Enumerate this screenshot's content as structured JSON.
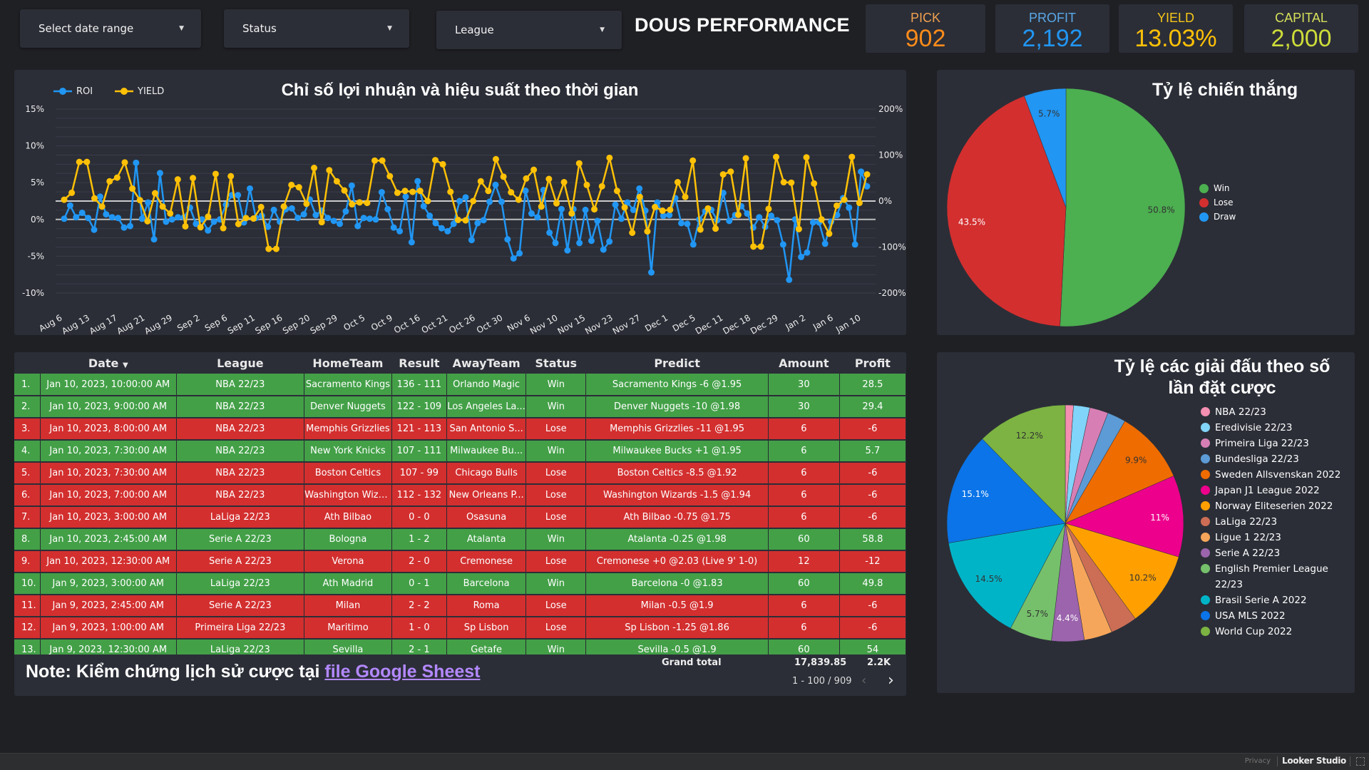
{
  "filters": {
    "date_range": "Select date range",
    "status": "Status",
    "league": "League"
  },
  "header": {
    "title": "DOUS PERFORMANCE"
  },
  "kpis": [
    {
      "label": "PICK",
      "value": "902",
      "label_color": "#f0a050",
      "value_color": "#ff8c1a"
    },
    {
      "label": "PROFIT",
      "value": "2,192",
      "label_color": "#5aa8e8",
      "value_color": "#2196f3"
    },
    {
      "label": "YIELD",
      "value": "13.03%",
      "label_color": "#f5c518",
      "value_color": "#ffc107"
    },
    {
      "label": "CAPITAL",
      "value": "2,000",
      "label_color": "#d6e05a",
      "value_color": "#cddc39"
    }
  ],
  "colors": {
    "win": "#43a047",
    "lose": "#d32f2f",
    "roi_line": "#2196f3",
    "yield_line": "#ffc107",
    "panel_bg": "#2b2e37",
    "page_bg": "#1f2024",
    "link": "#b388ff"
  },
  "chart_data": [
    {
      "type": "line",
      "title": "Chỉ số lợi nhuận và hiệu suất theo thời gian",
      "legend": [
        "ROI",
        "YIELD"
      ],
      "legend_position": "top-left",
      "grid": true,
      "left_axis": {
        "series": "ROI",
        "ylim": [
          -10,
          15
        ],
        "ticks": [
          "-10%",
          "-5%",
          "0%",
          "5%",
          "10%",
          "15%"
        ]
      },
      "right_axis": {
        "series": "YIELD",
        "ylim": [
          -200,
          200
        ],
        "ticks": [
          "-200%",
          "-100%",
          "0%",
          "100%",
          "200%"
        ]
      },
      "x_tick_labels": [
        "Aug 6",
        "Aug 13",
        "Aug 17",
        "Aug 21",
        "Aug 29",
        "Sep 2",
        "Sep 6",
        "Sep 11",
        "Sep 16",
        "Sep 20",
        "Sep 29",
        "Oct 5",
        "Oct 9",
        "Oct 16",
        "Oct 21",
        "Oct 26",
        "Oct 30",
        "Nov 6",
        "Nov 10",
        "Nov 15",
        "Nov 23",
        "Nov 27",
        "Dec 1",
        "Dec 5",
        "Dec 11",
        "Dec 18",
        "Dec 29",
        "Jan 2",
        "Jan 6",
        "Jan 10"
      ],
      "series": [
        {
          "name": "ROI",
          "axis": "left",
          "color": "#2196f3",
          "values": [
            0.1,
            1.9,
            0.3,
            0.9,
            0.2,
            -1.4,
            3.1,
            0.7,
            0.3,
            0.2,
            -1.1,
            -0.9,
            7.7,
            0.1,
            2.3,
            -2.7,
            6.3,
            -0.3,
            0.0,
            0.3,
            0.3,
            1.6,
            -0.6,
            0.0,
            -1.5,
            -0.3,
            0.0,
            2.0,
            3.3,
            3.3,
            -0.4,
            4.2,
            0.2,
            0.5,
            -1.0,
            1.3,
            -0.3,
            1.4,
            1.5,
            0.2,
            0.7,
            2.7,
            0.6,
            1.2,
            0.2,
            -0.2,
            -0.6,
            1.1,
            4.6,
            -0.9,
            0.2,
            0.1,
            0.0,
            3.7,
            1.4,
            -1.1,
            -1.6,
            3.1,
            -3.1,
            5.2,
            1.8,
            0.5,
            -0.5,
            -1.2,
            -1.6,
            -0.6,
            2.5,
            3.0,
            -2.8,
            -0.5,
            -0.1,
            2.4,
            4.7,
            2.4,
            -2.7,
            -5.3,
            -4.6,
            3.9,
            0.8,
            0.3,
            4.0,
            -1.8,
            -3.2,
            1.4,
            -4.2,
            1.4,
            -3.2,
            1.3,
            -2.9,
            -0.2,
            -4.1,
            -3.0,
            2.0,
            0.1,
            2.3,
            1.3,
            4.2,
            1.2,
            -7.2,
            2.3,
            0.5,
            0.6,
            2.9,
            -0.5,
            -0.6,
            -3.4,
            0.0,
            1.1,
            1.3,
            -0.1,
            3.6,
            -0.2,
            0.6,
            1.8,
            0.8,
            -1.1,
            0.3,
            -1.0,
            0.5,
            -0.1,
            -3.4,
            -8.2,
            0.0,
            -5.1,
            -4.5,
            -0.4,
            -0.4,
            -3.3,
            -0.3,
            0.6,
            2.9,
            1.6,
            -3.4,
            6.5,
            4.5
          ],
          "note": "values estimated from chart pixels"
        },
        {
          "name": "YIELD",
          "axis": "right",
          "color": "#ffc107",
          "values": [
            3,
            18,
            85,
            85,
            6,
            -12,
            43,
            51,
            84,
            27,
            2,
            -44,
            17,
            -12,
            -27,
            47,
            -55,
            50,
            -57,
            -34,
            59,
            -59,
            54,
            -50,
            -37,
            -38,
            -13,
            -104,
            -104,
            -12,
            35,
            30,
            -6,
            72,
            -46,
            67,
            43,
            23,
            -7,
            -3,
            -4,
            88,
            88,
            54,
            18,
            22,
            20,
            22,
            0,
            89,
            80,
            20,
            -41,
            -42,
            0,
            43,
            22,
            91,
            53,
            19,
            3,
            49,
            68,
            -12,
            48,
            -5,
            41,
            -27,
            82,
            35,
            -18,
            32,
            94,
            22,
            -14,
            -69,
            9,
            -66,
            -13,
            -21,
            -19,
            41,
            9,
            88,
            -62,
            -16,
            -60,
            58,
            64,
            -30,
            93,
            -99,
            -99,
            -17,
            96,
            41,
            40,
            -61,
            95,
            38,
            -40,
            -71,
            -10,
            3,
            96,
            -4,
            58
          ],
          "note": "values estimated from chart pixels (percent)"
        }
      ]
    },
    {
      "type": "pie",
      "title": "Tỷ lệ chiến thắng",
      "legend_position": "right",
      "slices": [
        {
          "label": "Win",
          "value": 50.8,
          "color": "#4caf50"
        },
        {
          "label": "Lose",
          "value": 43.5,
          "color": "#d32f2f"
        },
        {
          "label": "Draw",
          "value": 5.7,
          "color": "#2196f3"
        }
      ]
    },
    {
      "type": "pie",
      "title": "Tỷ lệ các giải đấu theo số lần đặt cược",
      "legend_position": "right",
      "slices": [
        {
          "label": "NBA 22/23",
          "value": 1.1,
          "color": "#f48fb1",
          "show_label": false
        },
        {
          "label": "Eredivisie 22/23",
          "value": 2.2,
          "color": "#81d4fa",
          "show_label": false
        },
        {
          "label": "Primeira Liga 22/23",
          "value": 2.5,
          "color": "#d77fb5",
          "show_label": false
        },
        {
          "label": "Bundesliga 22/23",
          "value": 2.5,
          "color": "#5c9bd5",
          "show_label": false
        },
        {
          "label": "Sweden Allsvenskan 2022",
          "value": 9.9,
          "color": "#ef6c00",
          "show_label": true
        },
        {
          "label": "Japan J1 League 2022",
          "value": 11,
          "color": "#ec008c",
          "show_label": true
        },
        {
          "label": "Norway Eliteserien 2022",
          "value": 10.2,
          "color": "#ffa000",
          "show_label": true
        },
        {
          "label": "LaLiga 22/23",
          "value": 3.6,
          "color": "#cc6e55",
          "show_label": false
        },
        {
          "label": "Ligue 1 22/23",
          "value": 3.8,
          "color": "#f6a65a",
          "show_label": false
        },
        {
          "label": "Serie A 22/23",
          "value": 4.4,
          "color": "#9c64ad",
          "show_label": true
        },
        {
          "label": "English Premier League 22/23",
          "value": 5.7,
          "color": "#76c06b",
          "show_label": true
        },
        {
          "label": "Brasil Serie A 2022",
          "value": 14.5,
          "color": "#00b4c8",
          "show_label": true
        },
        {
          "label": "USA MLS 2022",
          "value": 15.1,
          "color": "#0a74e8",
          "show_label": true
        },
        {
          "label": "World Cup 2022",
          "value": 12.2,
          "color": "#7cb342",
          "show_label": true
        }
      ]
    }
  ],
  "table": {
    "columns": [
      "",
      "Date",
      "League",
      "HomeTeam",
      "Result",
      "AwayTeam",
      "Status",
      "Predict",
      "Amount",
      "Profit"
    ],
    "sort_indicator": "▼",
    "rows": [
      {
        "idx": "1.",
        "date": "Jan 10, 2023, 10:00:00 AM",
        "league": "NBA 22/23",
        "home": "Sacramento Kings",
        "result": "136 - 111",
        "away": "Orlando Magic",
        "status": "Win",
        "predict": "Sacramento Kings -6 @1.95",
        "amount": "30",
        "profit": "28.5"
      },
      {
        "idx": "2.",
        "date": "Jan 10, 2023, 9:00:00 AM",
        "league": "NBA 22/23",
        "home": "Denver Nuggets",
        "result": "122 - 109",
        "away": "Los Angeles La...",
        "status": "Win",
        "predict": "Denver Nuggets -10 @1.98",
        "amount": "30",
        "profit": "29.4"
      },
      {
        "idx": "3.",
        "date": "Jan 10, 2023, 8:00:00 AM",
        "league": "NBA 22/23",
        "home": "Memphis Grizzlies",
        "result": "121 - 113",
        "away": "San Antonio S...",
        "status": "Lose",
        "predict": "Memphis Grizzlies -11 @1.95",
        "amount": "6",
        "profit": "-6"
      },
      {
        "idx": "4.",
        "date": "Jan 10, 2023, 7:30:00 AM",
        "league": "NBA 22/23",
        "home": "New York Knicks",
        "result": "107 - 111",
        "away": "Milwaukee Bu...",
        "status": "Win",
        "predict": "Milwaukee Bucks +1 @1.95",
        "amount": "6",
        "profit": "5.7"
      },
      {
        "idx": "5.",
        "date": "Jan 10, 2023, 7:30:00 AM",
        "league": "NBA 22/23",
        "home": "Boston Celtics",
        "result": "107 - 99",
        "away": "Chicago Bulls",
        "status": "Lose",
        "predict": "Boston Celtics -8.5 @1.92",
        "amount": "6",
        "profit": "-6"
      },
      {
        "idx": "6.",
        "date": "Jan 10, 2023, 7:00:00 AM",
        "league": "NBA 22/23",
        "home": "Washington Wiza...",
        "result": "112 - 132",
        "away": "New Orleans P...",
        "status": "Lose",
        "predict": "Washington Wizards -1.5 @1.94",
        "amount": "6",
        "profit": "-6"
      },
      {
        "idx": "7.",
        "date": "Jan 10, 2023, 3:00:00 AM",
        "league": "LaLiga 22/23",
        "home": "Ath Bilbao",
        "result": "0 - 0",
        "away": "Osasuna",
        "status": "Lose",
        "predict": "Ath Bilbao -0.75 @1.75",
        "amount": "6",
        "profit": "-6"
      },
      {
        "idx": "8.",
        "date": "Jan 10, 2023, 2:45:00 AM",
        "league": "Serie A 22/23",
        "home": "Bologna",
        "result": "1 - 2",
        "away": "Atalanta",
        "status": "Win",
        "predict": "Atalanta -0.25 @1.98",
        "amount": "60",
        "profit": "58.8"
      },
      {
        "idx": "9.",
        "date": "Jan 10, 2023, 12:30:00 AM",
        "league": "Serie A 22/23",
        "home": "Verona",
        "result": "2 - 0",
        "away": "Cremonese",
        "status": "Lose",
        "predict": "Cremonese +0 @2.03 (Live 9' 1-0)",
        "amount": "12",
        "profit": "-12"
      },
      {
        "idx": "10.",
        "date": "Jan 9, 2023, 3:00:00 AM",
        "league": "LaLiga 22/23",
        "home": "Ath Madrid",
        "result": "0 - 1",
        "away": "Barcelona",
        "status": "Win",
        "predict": "Barcelona -0 @1.83",
        "amount": "60",
        "profit": "49.8"
      },
      {
        "idx": "11.",
        "date": "Jan 9, 2023, 2:45:00 AM",
        "league": "Serie A 22/23",
        "home": "Milan",
        "result": "2 - 2",
        "away": "Roma",
        "status": "Lose",
        "predict": "Milan -0.5 @1.9",
        "amount": "6",
        "profit": "-6"
      },
      {
        "idx": "12.",
        "date": "Jan 9, 2023, 1:00:00 AM",
        "league": "Primeira Liga 22/23",
        "home": "Maritimo",
        "result": "1 - 0",
        "away": "Sp Lisbon",
        "status": "Lose",
        "predict": "Sp Lisbon -1.25 @1.86",
        "amount": "6",
        "profit": "-6"
      },
      {
        "idx": "13.",
        "date": "Jan 9, 2023, 12:30:00 AM",
        "league": "LaLiga 22/23",
        "home": "Sevilla",
        "result": "2 - 1",
        "away": "Getafe",
        "status": "Win",
        "predict": "Sevilla -0.5 @1.9",
        "amount": "60",
        "profit": "54"
      }
    ],
    "grand_total_label": "Grand total",
    "grand_total_amount": "17,839.85",
    "grand_total_profit": "2.2K",
    "pagination": "1 - 100 / 909"
  },
  "note": {
    "text": "Note: Kiểm chứng lịch sử cược tại ",
    "link_text": "file Google Sheest"
  },
  "footer": {
    "privacy": "Privacy",
    "brand": "Looker Studio"
  }
}
